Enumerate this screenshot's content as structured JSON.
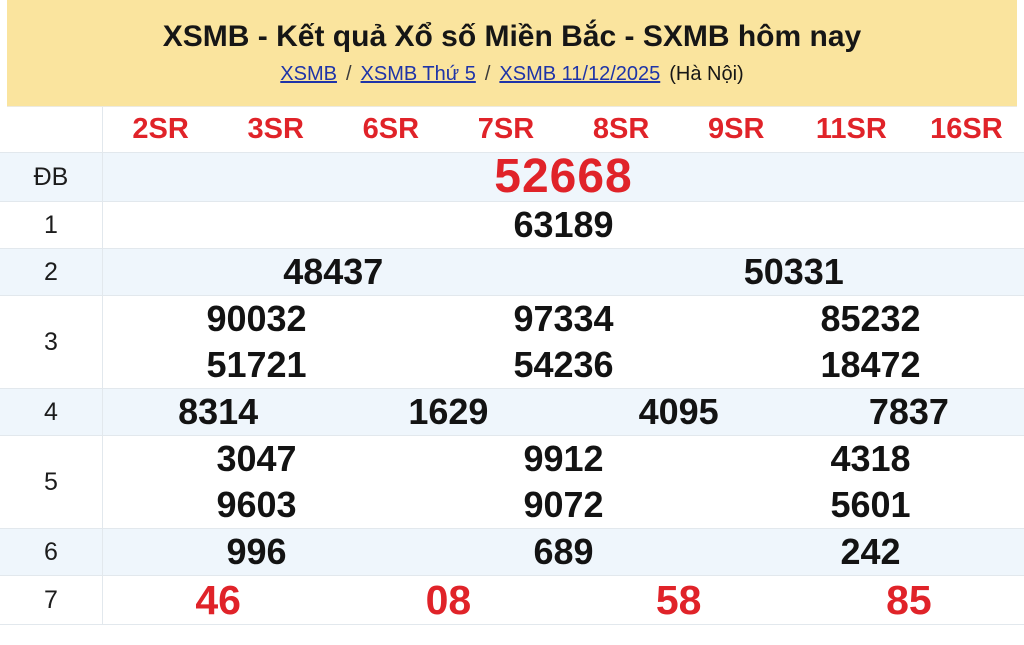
{
  "page": {
    "title": "XSMB - Kết quả Xổ số Miền Bắc - SXMB hôm nay",
    "breadcrumb": {
      "links": [
        "XSMB",
        "XSMB Thứ 5",
        "XSMB 11/12/2025"
      ],
      "separator": "/",
      "suffix": "(Hà Nội)"
    }
  },
  "results_table": {
    "columns": [
      "2SR",
      "3SR",
      "6SR",
      "7SR",
      "8SR",
      "9SR",
      "11SR",
      "16SR"
    ],
    "rows": [
      {
        "label": "ĐB",
        "style": "special",
        "lines": [
          [
            "52668"
          ]
        ]
      },
      {
        "label": "1",
        "style": "normal",
        "lines": [
          [
            "63189"
          ]
        ]
      },
      {
        "label": "2",
        "style": "normal",
        "lines": [
          [
            "48437",
            "50331"
          ]
        ]
      },
      {
        "label": "3",
        "style": "normal",
        "lines": [
          [
            "90032",
            "97334",
            "85232"
          ],
          [
            "51721",
            "54236",
            "18472"
          ]
        ]
      },
      {
        "label": "4",
        "style": "normal",
        "lines": [
          [
            "8314",
            "1629",
            "4095",
            "7837"
          ]
        ]
      },
      {
        "label": "5",
        "style": "normal",
        "lines": [
          [
            "3047",
            "9912",
            "4318"
          ],
          [
            "9603",
            "9072",
            "5601"
          ]
        ]
      },
      {
        "label": "6",
        "style": "normal",
        "lines": [
          [
            "996",
            "689",
            "242"
          ]
        ]
      },
      {
        "label": "7",
        "style": "last",
        "lines": [
          [
            "46",
            "08",
            "58",
            "85"
          ]
        ]
      }
    ]
  },
  "colors": {
    "banner_bg": "#fae49e",
    "shaded_row_bg": "#eff6fc",
    "accent_red": "#e02329",
    "link_blue": "#1e34a8",
    "row_border": "#e2e8ed",
    "text": "#151515"
  }
}
